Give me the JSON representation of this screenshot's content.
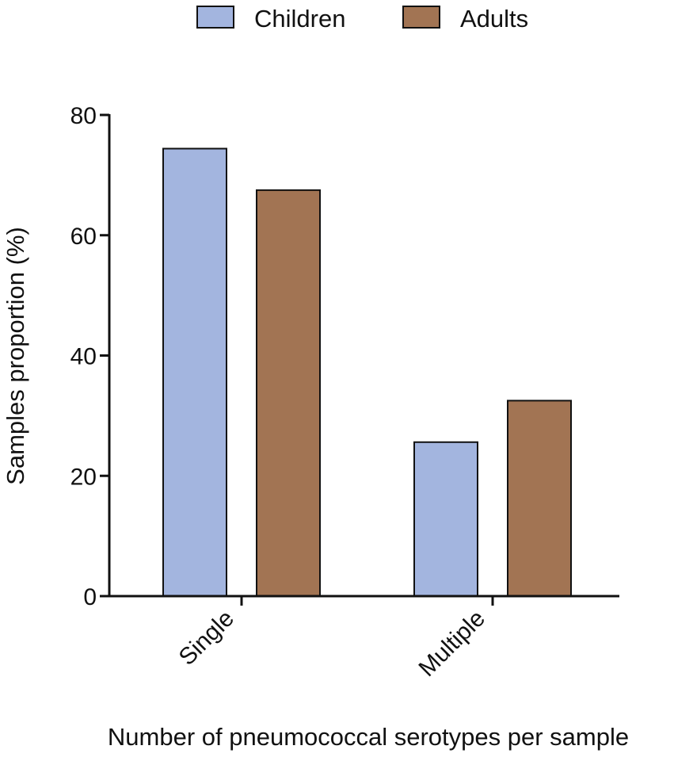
{
  "chart_data": {
    "type": "bar",
    "title": "",
    "xlabel": "Number of pneumococcal serotypes per sample",
    "ylabel": "Samples proportion (%)",
    "ylim": [
      0,
      80
    ],
    "yticks": [
      0,
      20,
      40,
      60,
      80
    ],
    "categories": [
      "Single",
      "Multiple"
    ],
    "series": [
      {
        "name": "Children",
        "color": "#a3b5df",
        "values": [
          74.4,
          25.6
        ]
      },
      {
        "name": "Adults",
        "color": "#a27453",
        "values": [
          67.5,
          32.5
        ]
      }
    ],
    "legend": "top-center",
    "grid": false
  }
}
